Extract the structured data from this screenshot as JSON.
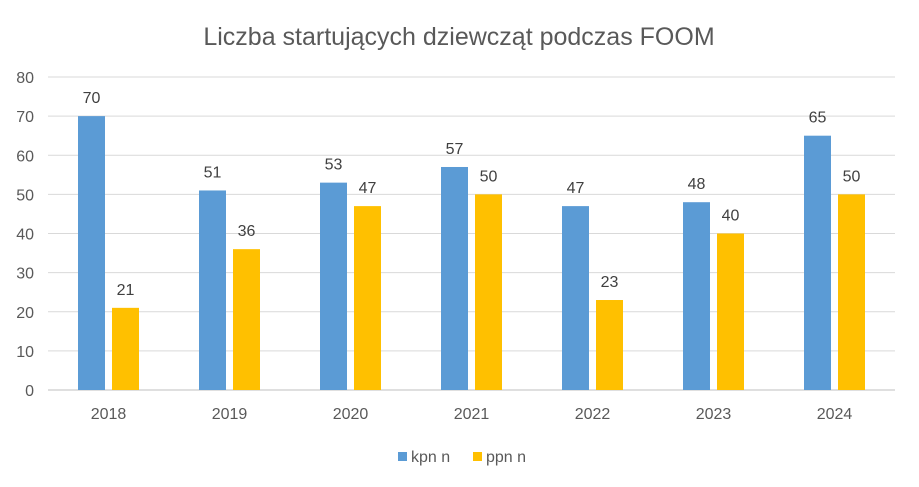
{
  "chart_data": {
    "type": "bar",
    "title": "Liczba startujących dziewcząt podczas FOOM",
    "xlabel": "",
    "ylabel": "",
    "categories": [
      "2018",
      "2019",
      "2020",
      "2021",
      "2022",
      "2023",
      "2024"
    ],
    "series": [
      {
        "name": "kpn n",
        "color": "#5B9BD5",
        "values": [
          70,
          51,
          53,
          57,
          47,
          48,
          65
        ]
      },
      {
        "name": "ppn n",
        "color": "#FFC000",
        "values": [
          21,
          36,
          47,
          50,
          23,
          40,
          50
        ]
      }
    ],
    "ylim": [
      0,
      80
    ],
    "yticks": [
      0,
      10,
      20,
      30,
      40,
      50,
      60,
      70,
      80
    ],
    "grid": true,
    "data_labels": true,
    "legend_position": "bottom"
  }
}
